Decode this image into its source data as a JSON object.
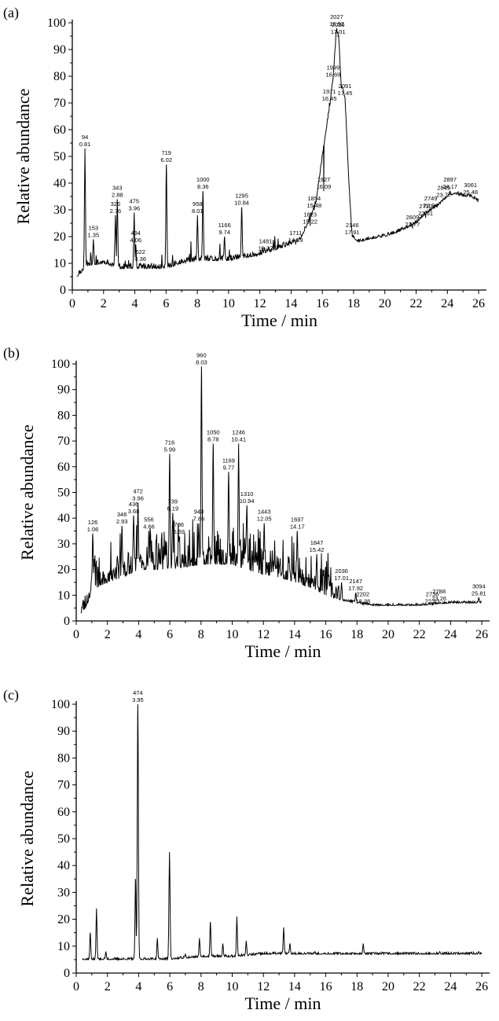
{
  "chart_data": [
    {
      "panel": "(a)",
      "type": "line",
      "xlabel": "Time / min",
      "ylabel": "Relative abundance",
      "xlim": [
        0,
        26.5
      ],
      "ylim": [
        0,
        100
      ],
      "xticks": [
        0,
        2,
        4,
        6,
        8,
        10,
        12,
        14,
        16,
        18,
        20,
        22,
        24,
        26
      ],
      "yticks": [
        0,
        10,
        20,
        30,
        40,
        50,
        60,
        70,
        80,
        90,
        100
      ],
      "baseline": [
        [
          0.3,
          5
        ],
        [
          1.0,
          9
        ],
        [
          2.0,
          10
        ],
        [
          3.0,
          8
        ],
        [
          4.0,
          8
        ],
        [
          5.0,
          8
        ],
        [
          6.0,
          8
        ],
        [
          7.0,
          10
        ],
        [
          8.0,
          11
        ],
        [
          9.0,
          11
        ],
        [
          10.0,
          11
        ],
        [
          11.0,
          12
        ],
        [
          12.0,
          13
        ],
        [
          13.0,
          15
        ],
        [
          14.0,
          17
        ],
        [
          14.6,
          19
        ],
        [
          15.0,
          24
        ],
        [
          15.3,
          28
        ],
        [
          15.6,
          33
        ],
        [
          16.0,
          50
        ],
        [
          16.3,
          62
        ],
        [
          16.5,
          70
        ],
        [
          16.7,
          80
        ],
        [
          16.9,
          97
        ],
        [
          17.05,
          95
        ],
        [
          17.2,
          76
        ],
        [
          17.45,
          72
        ],
        [
          17.7,
          40
        ],
        [
          17.9,
          20
        ],
        [
          18.3,
          18
        ],
        [
          19.0,
          19
        ],
        [
          20.0,
          20
        ],
        [
          21.0,
          22
        ],
        [
          22.0,
          25
        ],
        [
          22.5,
          28
        ],
        [
          23.0,
          30
        ],
        [
          23.5,
          32
        ],
        [
          24.0,
          35
        ],
        [
          24.5,
          36
        ],
        [
          25.0,
          35
        ],
        [
          25.5,
          35
        ],
        [
          26.0,
          33
        ]
      ],
      "peaks": [
        {
          "scan": "94",
          "time": "0.81",
          "x": 0.81,
          "y": 53
        },
        {
          "scan": "153",
          "time": "1.35",
          "x": 1.35,
          "y": 19
        },
        {
          "scan": "326",
          "time": "2.76",
          "x": 2.76,
          "y": 28
        },
        {
          "scan": "343",
          "time": "2.88",
          "x": 2.88,
          "y": 34
        },
        {
          "scan": "475",
          "time": "3.96",
          "x": 3.96,
          "y": 29
        },
        {
          "scan": "494",
          "time": "4.06",
          "x": 4.06,
          "y": 17
        },
        {
          "scan": "522",
          "time": "4.36",
          "x": 4.36,
          "y": 10
        },
        {
          "scan": "719",
          "time": "6.02",
          "x": 6.02,
          "y": 47
        },
        {
          "scan": "958",
          "time": "8.01",
          "x": 8.01,
          "y": 28
        },
        {
          "scan": "1000",
          "time": "8.36",
          "x": 8.36,
          "y": 37
        },
        {
          "scan": "1166",
          "time": "9.74",
          "x": 9.74,
          "y": 20
        },
        {
          "scan": "1295",
          "time": "10.84",
          "x": 10.84,
          "y": 31
        },
        {
          "scan": "1481",
          "time": "12.37",
          "x": 12.37,
          "y": 14
        },
        {
          "scan": "1711",
          "time": "14.29",
          "x": 14.29,
          "y": 17
        },
        {
          "scan": "1823",
          "time": "15.22",
          "x": 15.22,
          "y": 24
        },
        {
          "scan": "1854",
          "time": "15.48",
          "x": 15.48,
          "y": 30
        },
        {
          "scan": "1927",
          "time": "16.09",
          "x": 16.09,
          "y": 37
        },
        {
          "scan": "1971",
          "time": "16.45",
          "x": 16.45,
          "y": 70
        },
        {
          "scan": "1999",
          "time": "16.69",
          "x": 16.69,
          "y": 79
        },
        {
          "scan": "2027",
          "time": "16.92",
          "x": 16.92,
          "y": 98
        },
        {
          "scan": "2036",
          "time": "17.01",
          "x": 17.01,
          "y": 95
        },
        {
          "scan": "2091",
          "time": "17.45",
          "x": 17.45,
          "y": 72
        },
        {
          "scan": "2146",
          "time": "17.91",
          "x": 17.91,
          "y": 20
        },
        {
          "scan": "2609",
          "time": "21.77",
          "x": 21.77,
          "y": 23
        },
        {
          "scan": "2710",
          "time": "22.61",
          "x": 22.61,
          "y": 27
        },
        {
          "scan": "2749",
          "time": "22.94",
          "x": 22.94,
          "y": 30
        },
        {
          "scan": "2849",
          "time": "23.77",
          "x": 23.77,
          "y": 34
        },
        {
          "scan": "2897",
          "time": "24.17",
          "x": 24.17,
          "y": 37
        },
        {
          "scan": "3061",
          "time": "25.48",
          "x": 25.48,
          "y": 35
        }
      ],
      "noise_seed": 11
    },
    {
      "panel": "(b)",
      "type": "line",
      "xlabel": "Time / min",
      "ylabel": "Relative abundance",
      "xlim": [
        0,
        26.5
      ],
      "ylim": [
        0,
        100
      ],
      "xticks": [
        0,
        2,
        4,
        6,
        8,
        10,
        12,
        14,
        16,
        18,
        20,
        22,
        24,
        26
      ],
      "yticks": [
        0,
        10,
        20,
        30,
        40,
        50,
        60,
        70,
        80,
        90,
        100
      ],
      "baseline": [
        [
          0.3,
          3
        ],
        [
          0.6,
          5
        ],
        [
          0.8,
          8
        ],
        [
          1.0,
          12
        ],
        [
          2.0,
          15
        ],
        [
          3.0,
          17
        ],
        [
          4.0,
          20
        ],
        [
          5.0,
          20
        ],
        [
          6.0,
          20
        ],
        [
          7.0,
          21
        ],
        [
          8.0,
          22
        ],
        [
          9.0,
          22
        ],
        [
          10.0,
          22
        ],
        [
          11.0,
          20
        ],
        [
          12.0,
          18
        ],
        [
          13.0,
          17
        ],
        [
          14.0,
          15
        ],
        [
          15.0,
          13
        ],
        [
          16.0,
          10
        ],
        [
          17.0,
          8
        ],
        [
          18.0,
          7
        ],
        [
          19.0,
          6
        ],
        [
          20.0,
          6
        ],
        [
          22.0,
          6
        ],
        [
          24.0,
          7
        ],
        [
          26.0,
          7
        ]
      ],
      "peaks": [
        {
          "scan": "126",
          "time": "1.06",
          "x": 1.06,
          "y": 34
        },
        {
          "scan": "346",
          "time": "2.93",
          "x": 2.93,
          "y": 37
        },
        {
          "scan": "436",
          "time": "3.68",
          "x": 3.68,
          "y": 41
        },
        {
          "scan": "472",
          "time": "3.96",
          "x": 3.96,
          "y": 46
        },
        {
          "scan": "556",
          "time": "4.66",
          "x": 4.66,
          "y": 35
        },
        {
          "scan": "716",
          "time": "5.99",
          "x": 5.99,
          "y": 65
        },
        {
          "scan": "739",
          "time": "6.19",
          "x": 6.19,
          "y": 42
        },
        {
          "scan": "786",
          "time": "6.59",
          "x": 6.59,
          "y": 33
        },
        {
          "scan": "940",
          "time": "7.86",
          "x": 7.86,
          "y": 38
        },
        {
          "scan": "960",
          "time": "8.03",
          "x": 8.03,
          "y": 99
        },
        {
          "scan": "1050",
          "time": "8.78",
          "x": 8.78,
          "y": 69
        },
        {
          "scan": "1169",
          "time": "9.77",
          "x": 9.77,
          "y": 58
        },
        {
          "scan": "1246",
          "time": "10.41",
          "x": 10.41,
          "y": 69
        },
        {
          "scan": "1310",
          "time": "10.94",
          "x": 10.94,
          "y": 45
        },
        {
          "scan": "1443",
          "time": "12.05",
          "x": 12.05,
          "y": 38
        },
        {
          "scan": "1697",
          "time": "14.17",
          "x": 14.17,
          "y": 35
        },
        {
          "scan": "1847",
          "time": "15.42",
          "x": 15.42,
          "y": 26
        },
        {
          "scan": "2036",
          "time": "17.01",
          "x": 17.01,
          "y": 15
        },
        {
          "scan": "2147",
          "time": "17.92",
          "x": 17.92,
          "y": 11
        },
        {
          "scan": "2202",
          "time": "18.38",
          "x": 18.38,
          "y": 6
        },
        {
          "scan": "2736",
          "time": "22.83",
          "x": 22.83,
          "y": 6
        },
        {
          "scan": "2788",
          "time": "23.26",
          "x": 23.26,
          "y": 7
        },
        {
          "scan": "3094",
          "time": "25.81",
          "x": 25.81,
          "y": 9
        }
      ],
      "noise_seed": 23
    },
    {
      "panel": "(c)",
      "type": "line",
      "xlabel": "Time / min",
      "ylabel": "Relative abundance",
      "xlim": [
        0,
        26.5
      ],
      "ylim": [
        0,
        100
      ],
      "xticks": [
        0,
        2,
        4,
        6,
        8,
        10,
        12,
        14,
        16,
        18,
        20,
        22,
        24,
        26
      ],
      "yticks": [
        0,
        10,
        20,
        30,
        40,
        50,
        60,
        70,
        80,
        90,
        100
      ],
      "baseline": [
        [
          0.4,
          5
        ],
        [
          1.0,
          5
        ],
        [
          2.0,
          5
        ],
        [
          3.0,
          5
        ],
        [
          4.0,
          5
        ],
        [
          6.0,
          5
        ],
        [
          8.0,
          6
        ],
        [
          10.0,
          6
        ],
        [
          12.0,
          7
        ],
        [
          14.0,
          7
        ],
        [
          16.0,
          7
        ],
        [
          18.0,
          7
        ],
        [
          20.0,
          7
        ],
        [
          22.0,
          7
        ],
        [
          24.0,
          7
        ],
        [
          26.0,
          7
        ]
      ],
      "peaks": [
        {
          "scan": "",
          "time": "",
          "x": 0.9,
          "y": 15
        },
        {
          "scan": "",
          "time": "",
          "x": 1.3,
          "y": 24
        },
        {
          "scan": "",
          "time": "",
          "x": 1.9,
          "y": 8
        },
        {
          "scan": "",
          "time": "",
          "x": 2.5,
          "y": 5
        },
        {
          "scan": "",
          "time": "",
          "x": 3.8,
          "y": 35
        },
        {
          "scan": "474",
          "time": "3.95",
          "x": 3.95,
          "y": 100
        },
        {
          "scan": "",
          "time": "",
          "x": 5.2,
          "y": 13
        },
        {
          "scan": "",
          "time": "",
          "x": 5.98,
          "y": 45
        },
        {
          "scan": "",
          "time": "",
          "x": 7.0,
          "y": 7
        },
        {
          "scan": "",
          "time": "",
          "x": 7.9,
          "y": 13
        },
        {
          "scan": "",
          "time": "",
          "x": 8.6,
          "y": 19
        },
        {
          "scan": "",
          "time": "",
          "x": 9.4,
          "y": 11
        },
        {
          "scan": "",
          "time": "",
          "x": 10.3,
          "y": 21
        },
        {
          "scan": "",
          "time": "",
          "x": 10.9,
          "y": 12
        },
        {
          "scan": "",
          "time": "",
          "x": 13.3,
          "y": 17
        },
        {
          "scan": "",
          "time": "",
          "x": 13.7,
          "y": 11
        },
        {
          "scan": "",
          "time": "",
          "x": 15.3,
          "y": 8
        },
        {
          "scan": "",
          "time": "",
          "x": 18.4,
          "y": 11
        },
        {
          "scan": "",
          "time": "",
          "x": 20.0,
          "y": 7
        },
        {
          "scan": "",
          "time": "",
          "x": 23.3,
          "y": 8
        },
        {
          "scan": "",
          "time": "",
          "x": 25.8,
          "y": 8
        }
      ],
      "noise_seed": 37
    }
  ]
}
